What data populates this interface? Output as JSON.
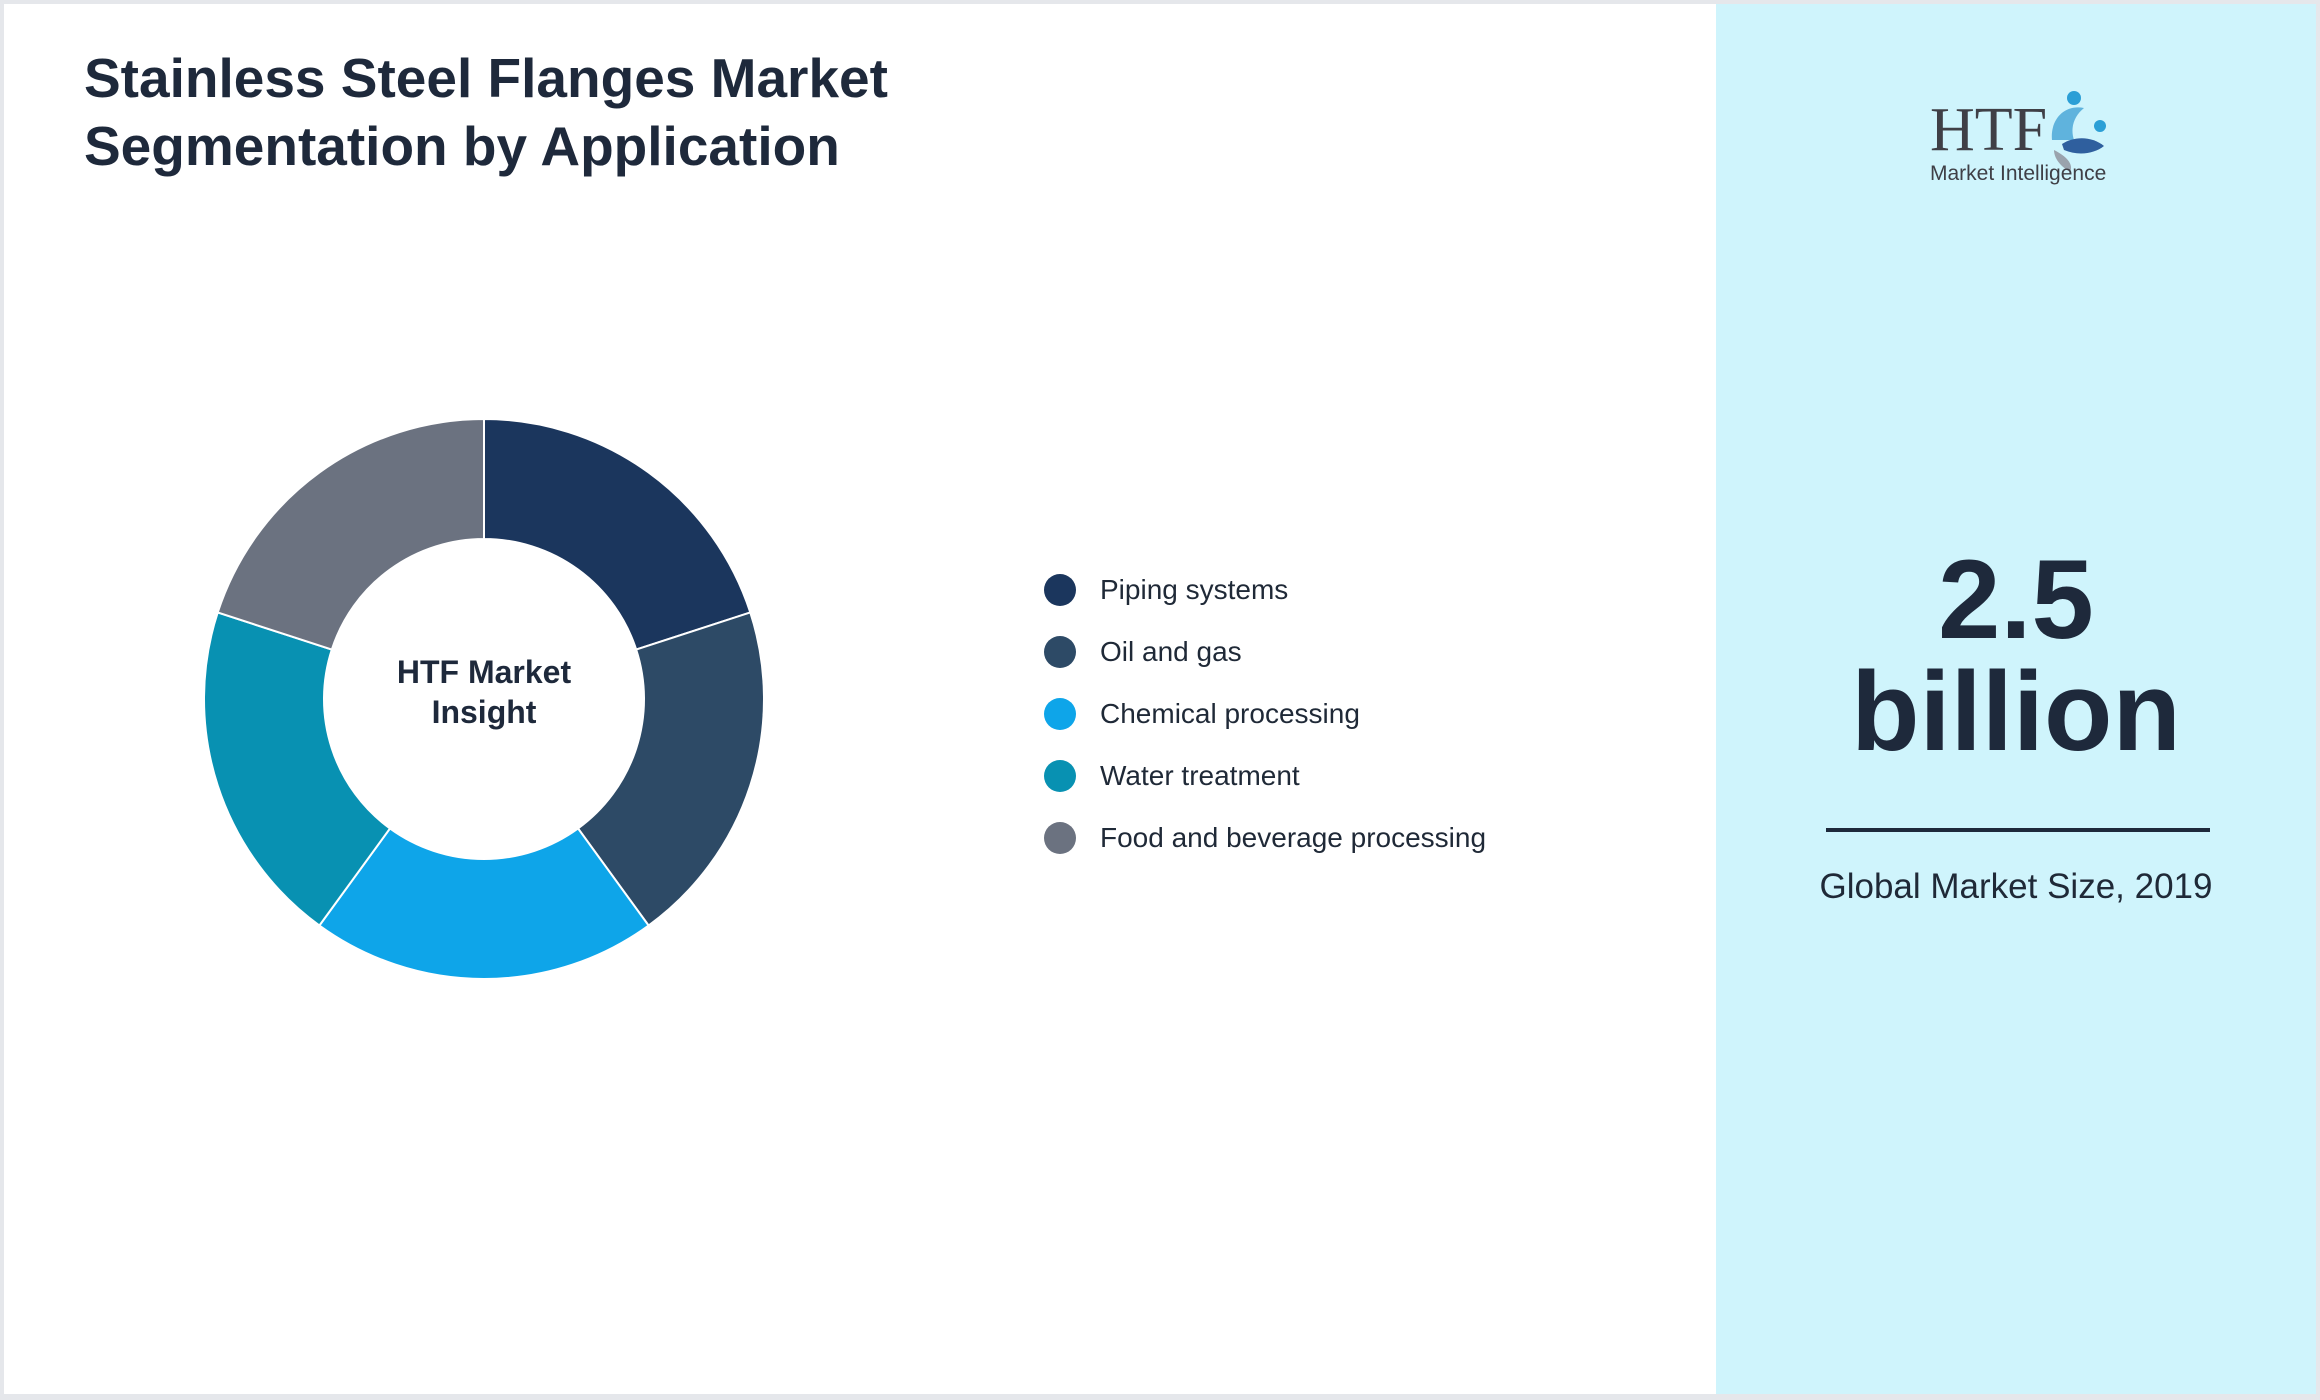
{
  "title": "Stainless Steel Flanges Market Segmentation by Application",
  "chart_data": {
    "type": "pie",
    "subtype": "donut",
    "center_label": "HTF Market Insight",
    "legend_position": "right",
    "categories": [
      "Piping systems",
      "Oil and gas",
      "Chemical processing",
      "Water treatment",
      "Food and beverage processing"
    ],
    "values": [
      20,
      20,
      20,
      20,
      20
    ],
    "colors": [
      "#1b365d",
      "#2d4a66",
      "#0ea5e9",
      "#0891b2",
      "#6b7280"
    ]
  },
  "sidebar": {
    "logo": {
      "text": "HTF",
      "subtitle": "Market Intelligence",
      "icon": "htf-logo-icon"
    },
    "metric_value": "2.5 billion",
    "metric_caption": "Global Market Size, 2019",
    "accent_color": "#cff4fc"
  }
}
